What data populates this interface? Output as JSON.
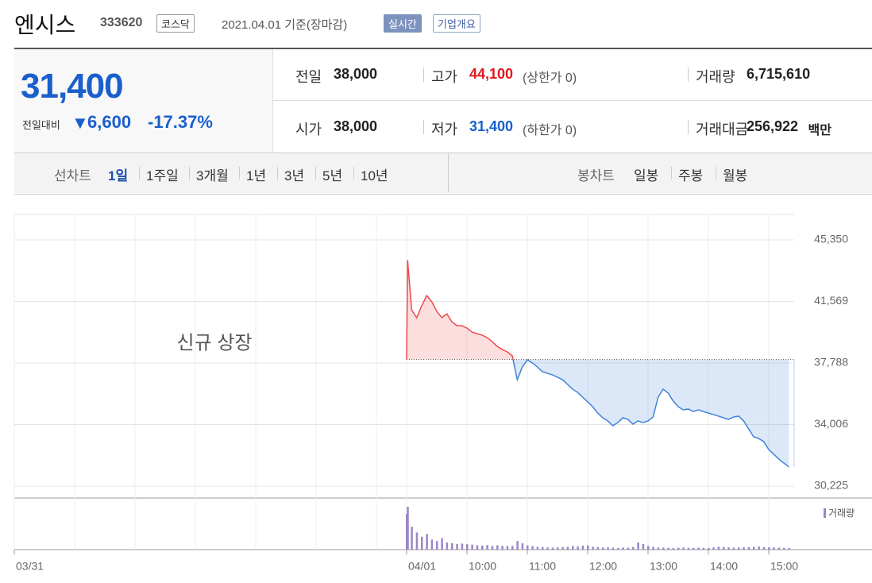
{
  "header": {
    "title": "엔시스",
    "code": "333620",
    "market": "코스닥",
    "date": "2021.04.01 기준(장마감)",
    "buttons": [
      "실시간",
      "기업개요"
    ]
  },
  "quote": {
    "price": "31,400",
    "change_label": "전일대비",
    "change": "6,600",
    "change_rate": "-17.37%",
    "rows": [
      [
        {
          "label": "전일",
          "value": "38,000"
        },
        {
          "label": "고가",
          "value": "44,100",
          "note": "(상한가 0)"
        },
        {
          "label": "거래량",
          "value": "6,715,610"
        }
      ],
      [
        {
          "label": "시가",
          "value": "38,000"
        },
        {
          "label": "저가",
          "value": "31,400",
          "note": "(하한가 0)"
        },
        {
          "label": "거래대금",
          "value": "256,922",
          "note": "백만"
        }
      ]
    ]
  },
  "tabs": {
    "line_label": "선차트",
    "line": [
      "1일",
      "1주일",
      "3개월",
      "1년",
      "3년",
      "5년",
      "10년"
    ],
    "candle_label": "봉차트",
    "candle": [
      "일봉",
      "주봉",
      "월봉"
    ]
  },
  "chart_data": {
    "type": "line",
    "annotation": "신규 상장",
    "baseline": 38000,
    "up_color": "#f04848",
    "down_color": "#3f82d8",
    "x": [
      540,
      541,
      545,
      550,
      555,
      560,
      565,
      570,
      575,
      580,
      585,
      590,
      595,
      600,
      605,
      610,
      615,
      620,
      625,
      630,
      635,
      640,
      645,
      650,
      655,
      660,
      665,
      670,
      675,
      680,
      685,
      690,
      695,
      700,
      705,
      710,
      715,
      720,
      725,
      730,
      735,
      740,
      745,
      750,
      755,
      760,
      765,
      770,
      775,
      780,
      785,
      790,
      795,
      800,
      805,
      810,
      815,
      820,
      825,
      830,
      835,
      840,
      845,
      850,
      855,
      860,
      865,
      870,
      875,
      880,
      885,
      890,
      895,
      900,
      905,
      910,
      915,
      920
    ],
    "values": [
      38000,
      44100,
      41050,
      40570,
      41300,
      41930,
      41550,
      40960,
      40570,
      40810,
      40320,
      40080,
      40080,
      39930,
      39690,
      39590,
      39500,
      39350,
      39100,
      38810,
      38620,
      38470,
      38230,
      36760,
      37540,
      37980,
      37790,
      37540,
      37250,
      37150,
      37060,
      36910,
      36760,
      36470,
      36180,
      35980,
      35690,
      35400,
      35100,
      34710,
      34420,
      34230,
      33930,
      34130,
      34420,
      34320,
      34030,
      34230,
      34130,
      34230,
      34470,
      35690,
      36180,
      35940,
      35450,
      35100,
      34910,
      34960,
      34810,
      34910,
      34810,
      34710,
      34620,
      34520,
      34420,
      34320,
      34470,
      34520,
      34230,
      33740,
      33250,
      33150,
      32960,
      32470,
      32180,
      31880,
      31640,
      31400
    ],
    "volume": {
      "name": "거래량",
      "color": "#9a86c8",
      "values": [
        250000,
        300000,
        160000,
        120000,
        90000,
        110000,
        70000,
        60000,
        80000,
        50000,
        45000,
        40000,
        42000,
        38000,
        35000,
        30000,
        28000,
        32000,
        25000,
        30000,
        27000,
        25000,
        26000,
        60000,
        45000,
        30000,
        25000,
        20000,
        18000,
        15000,
        14000,
        16000,
        18000,
        20000,
        25000,
        22000,
        28000,
        30000,
        20000,
        18000,
        15000,
        16000,
        14000,
        12000,
        15000,
        14000,
        18000,
        50000,
        40000,
        25000,
        20000,
        15000,
        14000,
        13000,
        12000,
        14000,
        15000,
        13000,
        12000,
        14000,
        13000,
        12000,
        15000,
        20000,
        18000,
        16000,
        14000,
        15000,
        16000,
        18000,
        20000,
        22000,
        18000,
        16000,
        15000,
        14000,
        13000,
        12000
      ]
    },
    "xlim": [
      150,
      930
    ],
    "xticks": [
      {
        "value": 150,
        "label": "03/31"
      },
      {
        "value": 540,
        "label": "04/01"
      },
      {
        "value": 600,
        "label": "10:00"
      },
      {
        "value": 660,
        "label": "11:00"
      },
      {
        "value": 720,
        "label": "12:00"
      },
      {
        "value": 780,
        "label": "13:00"
      },
      {
        "value": 840,
        "label": "14:00"
      },
      {
        "value": 900,
        "label": "15:00"
      }
    ],
    "ylim": [
      30225,
      45350
    ],
    "yticks": [
      {
        "value": 45350,
        "label": "45,350"
      },
      {
        "value": 41569,
        "label": "41,569"
      },
      {
        "value": 37788,
        "label": "37,788"
      },
      {
        "value": 34006,
        "label": "34,006"
      },
      {
        "value": 30225,
        "label": "30,225"
      }
    ],
    "grid": true
  }
}
